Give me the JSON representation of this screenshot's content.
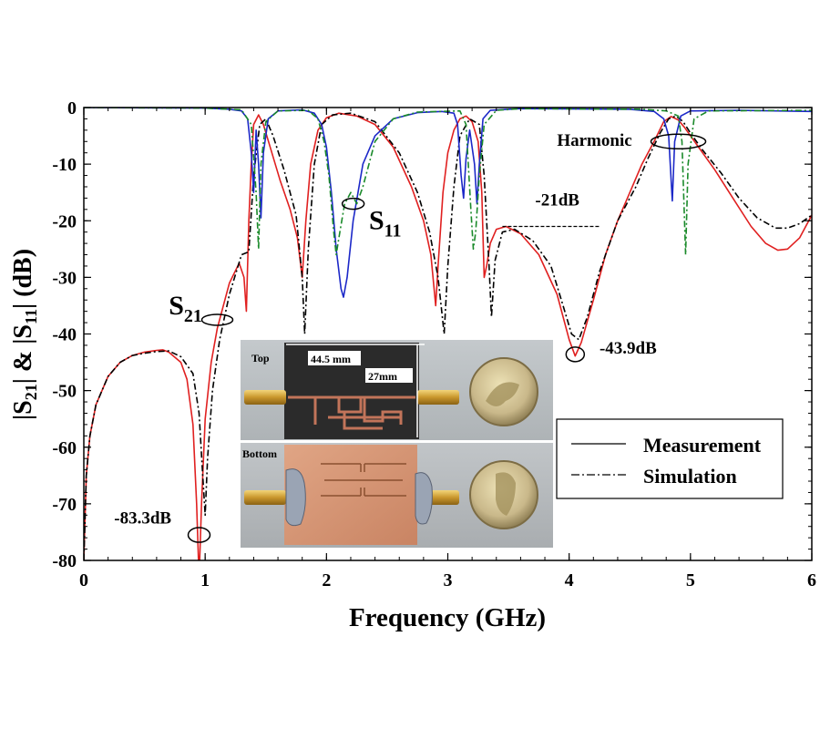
{
  "chart_data": {
    "type": "line",
    "title": "",
    "xlabel": "Frequency (GHz)",
    "ylabel_parts": [
      "|S",
      "21",
      "| & |S",
      "11",
      "| (dB)"
    ],
    "xlim": [
      0,
      6
    ],
    "ylim": [
      -80,
      0
    ],
    "x_ticks": [
      0,
      1,
      2,
      3,
      4,
      5,
      6
    ],
    "y_ticks": [
      0,
      -10,
      -20,
      -30,
      -40,
      -50,
      -60,
      -70,
      -80
    ],
    "grid": false,
    "legend": {
      "placement": "lower-right",
      "entries": [
        {
          "label": "Measurement",
          "style": "solid"
        },
        {
          "label": "Simulation",
          "style": "dash-dot"
        }
      ]
    },
    "series": [
      {
        "name": "S21 measured",
        "color": "#e02020",
        "style": "solid",
        "points": [
          [
            0.0,
            -80
          ],
          [
            0.02,
            -65
          ],
          [
            0.05,
            -58
          ],
          [
            0.1,
            -52.5
          ],
          [
            0.2,
            -47.5
          ],
          [
            0.3,
            -45
          ],
          [
            0.4,
            -43.8
          ],
          [
            0.5,
            -43.2
          ],
          [
            0.6,
            -42.9
          ],
          [
            0.65,
            -42.8
          ],
          [
            0.7,
            -43.2
          ],
          [
            0.8,
            -45
          ],
          [
            0.85,
            -48
          ],
          [
            0.9,
            -56
          ],
          [
            0.93,
            -70
          ],
          [
            0.95,
            -83.3
          ],
          [
            0.97,
            -70
          ],
          [
            1.0,
            -55
          ],
          [
            1.05,
            -45
          ],
          [
            1.1,
            -39
          ],
          [
            1.2,
            -31
          ],
          [
            1.28,
            -27.5
          ],
          [
            1.32,
            -30
          ],
          [
            1.34,
            -36
          ],
          [
            1.36,
            -20
          ],
          [
            1.38,
            -10
          ],
          [
            1.4,
            -3
          ],
          [
            1.44,
            -1.3
          ],
          [
            1.48,
            -3
          ],
          [
            1.55,
            -8
          ],
          [
            1.62,
            -13
          ],
          [
            1.7,
            -18
          ],
          [
            1.76,
            -23
          ],
          [
            1.8,
            -30
          ],
          [
            1.83,
            -20
          ],
          [
            1.87,
            -10
          ],
          [
            1.93,
            -4
          ],
          [
            2.0,
            -1.8
          ],
          [
            2.1,
            -1
          ],
          [
            2.25,
            -1.5
          ],
          [
            2.4,
            -3
          ],
          [
            2.55,
            -7
          ],
          [
            2.7,
            -14
          ],
          [
            2.8,
            -20
          ],
          [
            2.86,
            -26
          ],
          [
            2.9,
            -35
          ],
          [
            2.92,
            -28
          ],
          [
            2.96,
            -15
          ],
          [
            3.0,
            -8
          ],
          [
            3.05,
            -4
          ],
          [
            3.1,
            -2
          ],
          [
            3.15,
            -1.5
          ],
          [
            3.2,
            -2.5
          ],
          [
            3.25,
            -6
          ],
          [
            3.28,
            -15
          ],
          [
            3.3,
            -30
          ],
          [
            3.32,
            -28
          ],
          [
            3.35,
            -24
          ],
          [
            3.4,
            -21.5
          ],
          [
            3.48,
            -21
          ],
          [
            3.6,
            -22.3
          ],
          [
            3.75,
            -26
          ],
          [
            3.9,
            -33
          ],
          [
            4.0,
            -41
          ],
          [
            4.05,
            -43.9
          ],
          [
            4.1,
            -41.5
          ],
          [
            4.2,
            -34
          ],
          [
            4.3,
            -26
          ],
          [
            4.4,
            -20
          ],
          [
            4.5,
            -15
          ],
          [
            4.6,
            -10
          ],
          [
            4.7,
            -6
          ],
          [
            4.78,
            -2.5
          ],
          [
            4.84,
            -1.6
          ],
          [
            4.9,
            -2.2
          ],
          [
            4.95,
            -3.5
          ],
          [
            5.05,
            -6.5
          ],
          [
            5.2,
            -11
          ],
          [
            5.35,
            -16
          ],
          [
            5.5,
            -21
          ],
          [
            5.62,
            -24
          ],
          [
            5.72,
            -25.2
          ],
          [
            5.8,
            -25
          ],
          [
            5.9,
            -23
          ],
          [
            6.0,
            -19
          ]
        ]
      },
      {
        "name": "S21 simulated",
        "color": "#000000",
        "style": "dash-dot",
        "points": [
          [
            0.0,
            -80
          ],
          [
            0.02,
            -65
          ],
          [
            0.05,
            -58
          ],
          [
            0.1,
            -52.5
          ],
          [
            0.2,
            -47.5
          ],
          [
            0.3,
            -45
          ],
          [
            0.4,
            -43.8
          ],
          [
            0.5,
            -43.4
          ],
          [
            0.6,
            -43.1
          ],
          [
            0.7,
            -43
          ],
          [
            0.8,
            -44
          ],
          [
            0.9,
            -47
          ],
          [
            0.95,
            -54
          ],
          [
            0.98,
            -65
          ],
          [
            1.0,
            -72
          ],
          [
            1.02,
            -62
          ],
          [
            1.06,
            -50
          ],
          [
            1.12,
            -41
          ],
          [
            1.2,
            -33
          ],
          [
            1.3,
            -26
          ],
          [
            1.36,
            -25.5
          ],
          [
            1.4,
            -12
          ],
          [
            1.45,
            -3
          ],
          [
            1.5,
            -2
          ],
          [
            1.56,
            -5
          ],
          [
            1.65,
            -11
          ],
          [
            1.75,
            -19
          ],
          [
            1.8,
            -30
          ],
          [
            1.82,
            -40
          ],
          [
            1.85,
            -25
          ],
          [
            1.9,
            -10
          ],
          [
            1.96,
            -3
          ],
          [
            2.05,
            -1.3
          ],
          [
            2.2,
            -1
          ],
          [
            2.4,
            -2.5
          ],
          [
            2.6,
            -8
          ],
          [
            2.75,
            -15
          ],
          [
            2.85,
            -22
          ],
          [
            2.92,
            -30
          ],
          [
            2.97,
            -40
          ],
          [
            3.0,
            -28
          ],
          [
            3.05,
            -14
          ],
          [
            3.1,
            -5
          ],
          [
            3.18,
            -2
          ],
          [
            3.26,
            -3
          ],
          [
            3.3,
            -12
          ],
          [
            3.34,
            -28
          ],
          [
            3.36,
            -37
          ],
          [
            3.39,
            -27
          ],
          [
            3.45,
            -22
          ],
          [
            3.55,
            -21.5
          ],
          [
            3.7,
            -23.5
          ],
          [
            3.85,
            -28
          ],
          [
            3.95,
            -35
          ],
          [
            4.02,
            -40
          ],
          [
            4.08,
            -41
          ],
          [
            4.15,
            -37
          ],
          [
            4.25,
            -29
          ],
          [
            4.4,
            -20
          ],
          [
            4.55,
            -14
          ],
          [
            4.65,
            -9
          ],
          [
            4.75,
            -4.5
          ],
          [
            4.82,
            -2
          ],
          [
            4.88,
            -1.5
          ],
          [
            4.94,
            -2.5
          ],
          [
            5.0,
            -4.5
          ],
          [
            5.1,
            -7.5
          ],
          [
            5.25,
            -11.5
          ],
          [
            5.4,
            -16
          ],
          [
            5.55,
            -19.5
          ],
          [
            5.7,
            -21.3
          ],
          [
            5.8,
            -21.3
          ],
          [
            5.9,
            -20.5
          ],
          [
            6.0,
            -19
          ]
        ]
      },
      {
        "name": "S11 measured",
        "color": "#1c28c8",
        "style": "solid",
        "points": [
          [
            0.0,
            0
          ],
          [
            1.0,
            -0.1
          ],
          [
            1.2,
            -0.3
          ],
          [
            1.3,
            -0.6
          ],
          [
            1.35,
            -2
          ],
          [
            1.38,
            -8
          ],
          [
            1.4,
            -15
          ],
          [
            1.42,
            -4
          ],
          [
            1.44,
            -10
          ],
          [
            1.46,
            -19.5
          ],
          [
            1.48,
            -8
          ],
          [
            1.52,
            -2
          ],
          [
            1.6,
            -0.6
          ],
          [
            1.8,
            -0.4
          ],
          [
            1.9,
            -1
          ],
          [
            1.96,
            -3
          ],
          [
            2.0,
            -7
          ],
          [
            2.04,
            -15
          ],
          [
            2.08,
            -25
          ],
          [
            2.12,
            -32
          ],
          [
            2.14,
            -33.5
          ],
          [
            2.17,
            -30
          ],
          [
            2.22,
            -20
          ],
          [
            2.3,
            -10
          ],
          [
            2.4,
            -5
          ],
          [
            2.55,
            -2
          ],
          [
            2.75,
            -0.9
          ],
          [
            2.95,
            -0.7
          ],
          [
            3.05,
            -1
          ],
          [
            3.08,
            -3
          ],
          [
            3.11,
            -12
          ],
          [
            3.13,
            -16
          ],
          [
            3.15,
            -9
          ],
          [
            3.18,
            -4
          ],
          [
            3.22,
            -10
          ],
          [
            3.24,
            -17
          ],
          [
            3.26,
            -10
          ],
          [
            3.29,
            -2
          ],
          [
            3.35,
            -0.5
          ],
          [
            3.6,
            -0.2
          ],
          [
            4.5,
            -0.3
          ],
          [
            4.7,
            -0.7
          ],
          [
            4.78,
            -2
          ],
          [
            4.82,
            -5
          ],
          [
            4.85,
            -16.5
          ],
          [
            4.87,
            -6
          ],
          [
            4.92,
            -1.5
          ],
          [
            5.0,
            -0.6
          ],
          [
            5.4,
            -0.5
          ],
          [
            6.0,
            -0.7
          ]
        ]
      },
      {
        "name": "S11 simulated",
        "color": "#1a8a2a",
        "style": "dash-dot",
        "points": [
          [
            0.0,
            0
          ],
          [
            1.0,
            -0.1
          ],
          [
            1.3,
            -0.4
          ],
          [
            1.38,
            -3
          ],
          [
            1.42,
            -15
          ],
          [
            1.44,
            -25
          ],
          [
            1.46,
            -10
          ],
          [
            1.5,
            -2.5
          ],
          [
            1.6,
            -0.6
          ],
          [
            1.85,
            -0.5
          ],
          [
            1.93,
            -2
          ],
          [
            1.98,
            -6
          ],
          [
            2.02,
            -12
          ],
          [
            2.06,
            -22
          ],
          [
            2.08,
            -26
          ],
          [
            2.11,
            -22
          ],
          [
            2.15,
            -17
          ],
          [
            2.2,
            -15
          ],
          [
            2.25,
            -17
          ],
          [
            2.3,
            -14
          ],
          [
            2.4,
            -6
          ],
          [
            2.55,
            -2
          ],
          [
            2.75,
            -0.8
          ],
          [
            3.1,
            -0.6
          ],
          [
            3.15,
            -3
          ],
          [
            3.19,
            -18
          ],
          [
            3.21,
            -25
          ],
          [
            3.23,
            -22
          ],
          [
            3.26,
            -12
          ],
          [
            3.3,
            -3
          ],
          [
            3.4,
            -0.5
          ],
          [
            3.6,
            -0.2
          ],
          [
            4.6,
            -0.3
          ],
          [
            4.8,
            -0.6
          ],
          [
            4.9,
            -1.5
          ],
          [
            4.93,
            -6
          ],
          [
            4.96,
            -26
          ],
          [
            4.98,
            -10
          ],
          [
            5.03,
            -2
          ],
          [
            5.15,
            -0.6
          ],
          [
            6.0,
            -0.5
          ]
        ]
      }
    ],
    "annotations": [
      {
        "id": "s21-label",
        "text": "S",
        "sub": "21",
        "x": 0.7,
        "y": -36.5
      },
      {
        "id": "s11-label",
        "text": "S",
        "sub": "11",
        "x": 2.35,
        "y": -21.5
      },
      {
        "id": "min-left",
        "text": "-83.3dB",
        "x": 0.25,
        "y": -73.5
      },
      {
        "id": "min-mid",
        "text": "-43.9dB",
        "x": 4.25,
        "y": -43.5
      },
      {
        "id": "reject",
        "text": "-21dB",
        "x": 3.72,
        "y": -17.3
      },
      {
        "id": "harmonic",
        "text": "Harmonic",
        "x": 3.9,
        "y": -6.8
      }
    ],
    "ellipses": [
      {
        "id": "ellipse-s21",
        "x": 1.1,
        "y": -37.5
      },
      {
        "id": "ellipse-s11",
        "x": 2.22,
        "y": -17
      },
      {
        "id": "ellipse-min-left",
        "x": 0.95,
        "y": -75.5
      },
      {
        "id": "ellipse-min-mid",
        "x": 4.05,
        "y": -43.6
      },
      {
        "id": "ellipse-harmonic",
        "x": 4.9,
        "y": -6
      }
    ],
    "reference_line": {
      "x_start": 3.45,
      "x_end": 4.25,
      "y": -21
    }
  },
  "inset": {
    "top_label": "Top",
    "bottom_label": "Bottom",
    "length_dim": "44.5 mm",
    "width_dim": "27mm"
  }
}
